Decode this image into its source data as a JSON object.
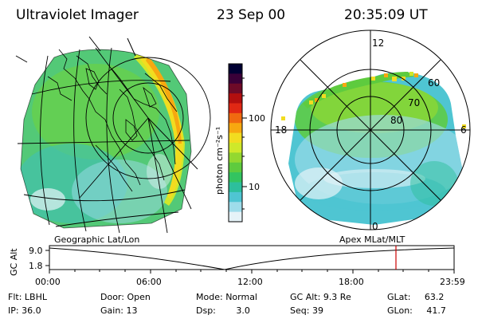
{
  "header": {
    "title": "Ultraviolet Imager",
    "date": "23 Sep 00",
    "time": "20:35:09 UT"
  },
  "colorbar": {
    "label": "photon cm⁻²s⁻¹",
    "ticks": [
      "100",
      "10"
    ],
    "colors": [
      "#000033",
      "#3a0038",
      "#6e0a28",
      "#b30f0f",
      "#e02814",
      "#f06a10",
      "#f7a810",
      "#f2dc20",
      "#cfe82a",
      "#93d830",
      "#5ecb3e",
      "#33c460",
      "#2dbf9c",
      "#4fc5d2",
      "#9edcea",
      "#e6f3f8"
    ]
  },
  "left_map": {
    "label": "Geographic Lat/Lon"
  },
  "right_map": {
    "label": "Apex MLat/MLT",
    "mlt_labels": [
      "12",
      "18",
      "6",
      "0"
    ],
    "lat_labels": [
      "60",
      "70",
      "80"
    ]
  },
  "timeline": {
    "axis_label": "GC Alt",
    "y_ticks": [
      "9.0",
      "1.8"
    ],
    "x_ticks": [
      "00:00",
      "06:00",
      "12:00",
      "18:00",
      "23:59"
    ],
    "marker_color": "#cc0000"
  },
  "info": {
    "flt_label": "Flt:",
    "flt_value": "LBHL",
    "ip_label": "IP:",
    "ip_value": "36.0",
    "door_label": "Door:",
    "door_value": "Open",
    "gain_label": "Gain:",
    "gain_value": "13",
    "mode_label": "Mode:",
    "mode_value": "Normal",
    "dsp_label": "Dsp:",
    "dsp_value": "3.0",
    "gcalt_label": "GC Alt:",
    "gcalt_value": "9.3 Re",
    "seq_label": "Seq:",
    "seq_value": "39",
    "glat_label": "GLat:",
    "glat_value": "63.2",
    "glon_label": "GLon:",
    "glon_value": "41.7"
  }
}
